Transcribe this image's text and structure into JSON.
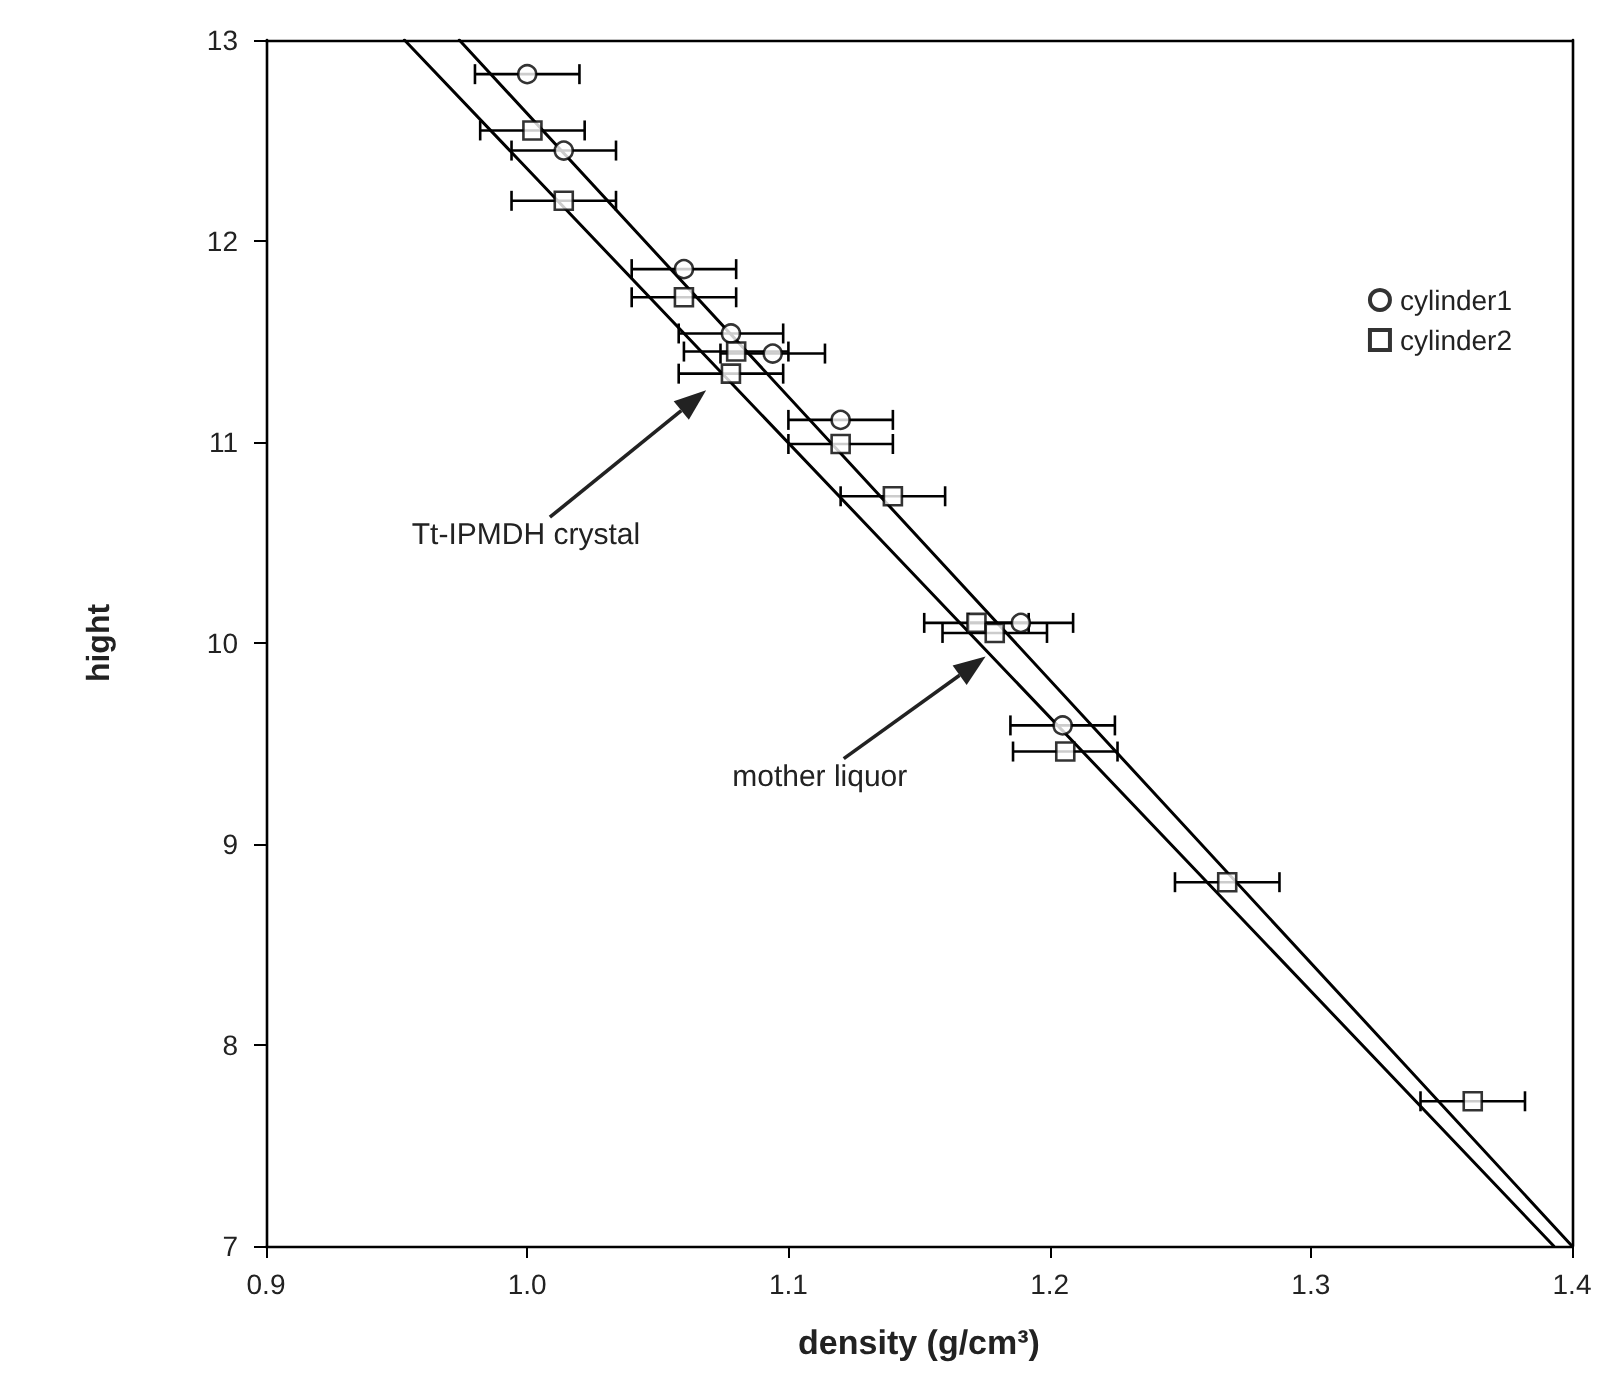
{
  "chart_data": {
    "type": "scatter",
    "xlabel": "density (g/cm³)",
    "ylabel": "hight",
    "xlim": [
      0.9,
      1.4
    ],
    "xticks": [
      0.9,
      {
        "value": 1,
        "label": "1.0"
      },
      1.1,
      1.2,
      1.3,
      1.4
    ],
    "ylim": [
      7,
      13
    ],
    "yticks": [
      7,
      8,
      9,
      10,
      11,
      12,
      13
    ],
    "grid": false,
    "legend": "top right",
    "series": [
      {
        "name": "cylinder1",
        "color": "#000000",
        "marker": "circle",
        "x": [
          1.0,
          1.014,
          1.06,
          1.078,
          1.094,
          1.12,
          1.189,
          1.205
        ],
        "values": [
          12.83,
          12.45,
          11.86,
          11.54,
          11.44,
          11.11,
          10.1,
          9.59
        ],
        "xerrors": [
          0.02,
          0.02,
          0.02,
          0.02,
          0.02,
          0.02,
          0.02,
          0.02
        ]
      },
      {
        "name": "cylinder2",
        "color": "#000000",
        "marker": "square",
        "x": [
          1.002,
          1.014,
          1.06,
          1.078,
          1.08,
          1.12,
          1.14,
          1.172,
          1.179,
          1.206,
          1.268,
          1.362
        ],
        "values": [
          12.55,
          12.2,
          11.72,
          11.34,
          11.45,
          10.99,
          10.73,
          10.1,
          10.05,
          9.46,
          8.81,
          7.72
        ],
        "xerrors": [
          0.02,
          0.02,
          0.02,
          0.02,
          0.02,
          0.02,
          0.02,
          0.02,
          0.02,
          0.02,
          0.02,
          0.02
        ]
      },
      {
        "type": "line",
        "color": "#000000",
        "marker": "none",
        "x": [
          0.974,
          1.4
        ],
        "values": [
          13,
          7
        ]
      },
      {
        "type": "line",
        "color": "#000000",
        "marker": "none",
        "x": [
          0.953,
          1.393
        ],
        "values": [
          13,
          7
        ]
      }
    ],
    "annotations": [
      "Tt-IPMDH crystal",
      "mother liquor"
    ]
  }
}
